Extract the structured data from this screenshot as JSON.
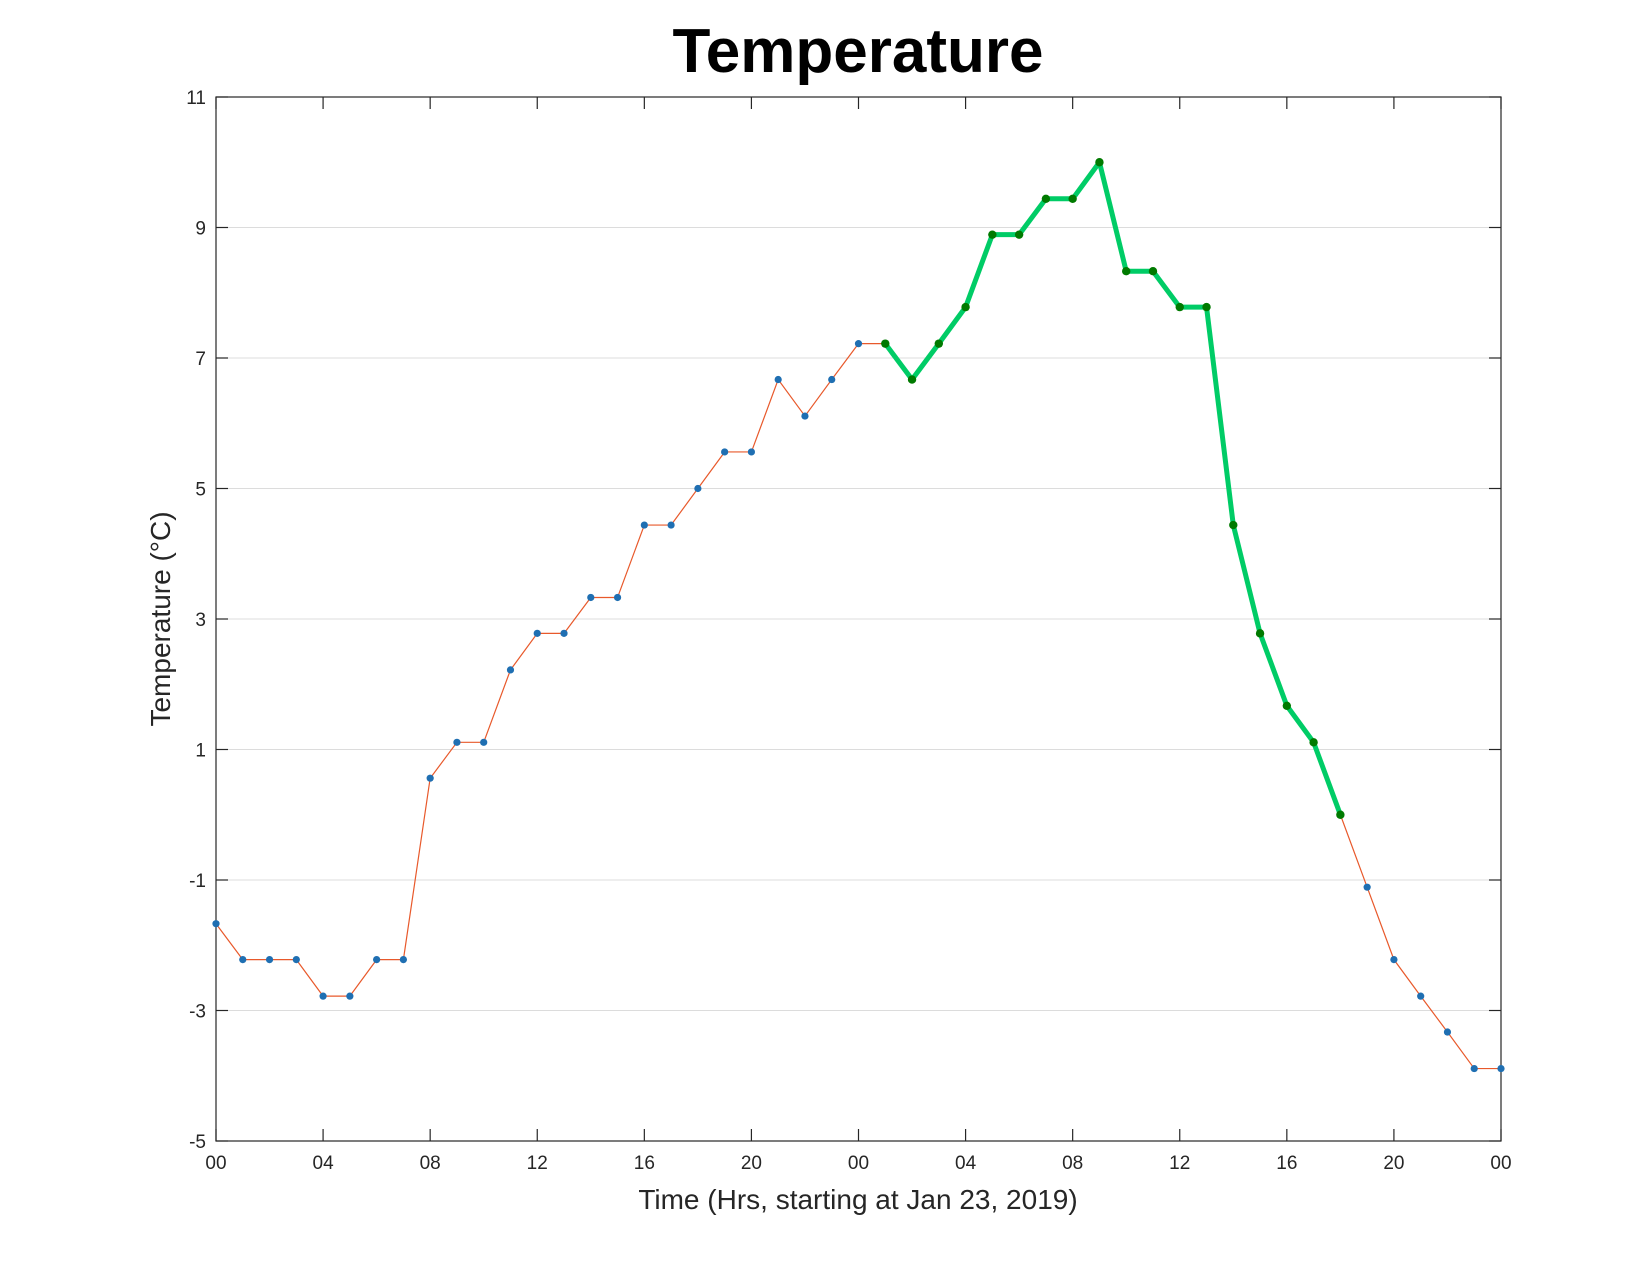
{
  "chart_data": {
    "type": "line",
    "title": "Temperature",
    "xlabel": "Time (Hrs, starting at Jan 23, 2019)",
    "ylabel": "Temperature (°C)",
    "ylim": [
      -5,
      11
    ],
    "xlim": [
      "2019-01-23 00:00",
      "2019-01-25 00:00"
    ],
    "yticks": [
      "-5",
      "-3",
      "-1",
      "1",
      "3",
      "5",
      "7",
      "9",
      "11"
    ],
    "xticks": [
      "00",
      "04",
      "08",
      "12",
      "16",
      "20",
      "00",
      "04",
      "08",
      "12",
      "16",
      "20",
      "00"
    ],
    "grid": "horizontal",
    "series": [
      {
        "color": "#e8592b",
        "marker_color": "#1f6fb2",
        "x": [
          "2019-01-23 00:00",
          "2019-01-23 01:00",
          "2019-01-23 02:00",
          "2019-01-23 03:00",
          "2019-01-23 04:00",
          "2019-01-23 05:00",
          "2019-01-23 06:00",
          "2019-01-23 07:00",
          "2019-01-23 08:00",
          "2019-01-23 09:00",
          "2019-01-23 10:00",
          "2019-01-23 11:00",
          "2019-01-23 12:00",
          "2019-01-23 13:00",
          "2019-01-23 14:00",
          "2019-01-23 15:00",
          "2019-01-23 16:00",
          "2019-01-23 17:00",
          "2019-01-23 18:00",
          "2019-01-23 19:00",
          "2019-01-23 20:00",
          "2019-01-23 21:00",
          "2019-01-23 22:00",
          "2019-01-23 23:00",
          "2019-01-24 00:00",
          "2019-01-24 01:00",
          "2019-01-24 02:00",
          "2019-01-24 03:00",
          "2019-01-24 04:00",
          "2019-01-24 05:00",
          "2019-01-24 06:00",
          "2019-01-24 07:00",
          "2019-01-24 08:00",
          "2019-01-24 09:00",
          "2019-01-24 10:00",
          "2019-01-24 11:00",
          "2019-01-24 12:00",
          "2019-01-24 13:00",
          "2019-01-24 14:00",
          "2019-01-24 15:00",
          "2019-01-24 16:00",
          "2019-01-24 17:00",
          "2019-01-24 18:00",
          "2019-01-24 19:00",
          "2019-01-24 20:00",
          "2019-01-24 21:00",
          "2019-01-24 22:00",
          "2019-01-24 23:00",
          "2019-01-25 00:00"
        ],
        "values": [
          -1.67,
          -2.22,
          -2.22,
          -2.22,
          -2.78,
          -2.78,
          -2.22,
          -2.22,
          0.56,
          1.11,
          1.11,
          2.22,
          2.78,
          2.78,
          3.33,
          3.33,
          4.44,
          4.44,
          5.0,
          5.56,
          5.56,
          6.67,
          6.11,
          6.67,
          7.22,
          7.22,
          6.67,
          7.22,
          7.78,
          8.89,
          8.89,
          9.44,
          9.44,
          10.0,
          8.33,
          8.33,
          7.78,
          7.78,
          4.44,
          2.78,
          1.67,
          1.11,
          0.0,
          -1.11,
          -2.22,
          -2.78,
          -3.33,
          -3.89,
          -3.89
        ]
      },
      {
        "color": "#00cc66",
        "marker_color": "#007a00",
        "x": [
          "2019-01-24 01:00",
          "2019-01-24 02:00",
          "2019-01-24 03:00",
          "2019-01-24 04:00",
          "2019-01-24 05:00",
          "2019-01-24 06:00",
          "2019-01-24 07:00",
          "2019-01-24 08:00",
          "2019-01-24 09:00",
          "2019-01-24 10:00",
          "2019-01-24 11:00",
          "2019-01-24 12:00",
          "2019-01-24 13:00",
          "2019-01-24 14:00",
          "2019-01-24 15:00",
          "2019-01-24 16:00",
          "2019-01-24 17:00",
          "2019-01-24 18:00"
        ],
        "values": [
          7.22,
          6.67,
          7.22,
          7.78,
          8.89,
          8.89,
          9.44,
          9.44,
          10.0,
          8.33,
          8.33,
          7.78,
          7.78,
          4.44,
          2.78,
          1.67,
          1.11,
          0.0
        ]
      }
    ]
  }
}
